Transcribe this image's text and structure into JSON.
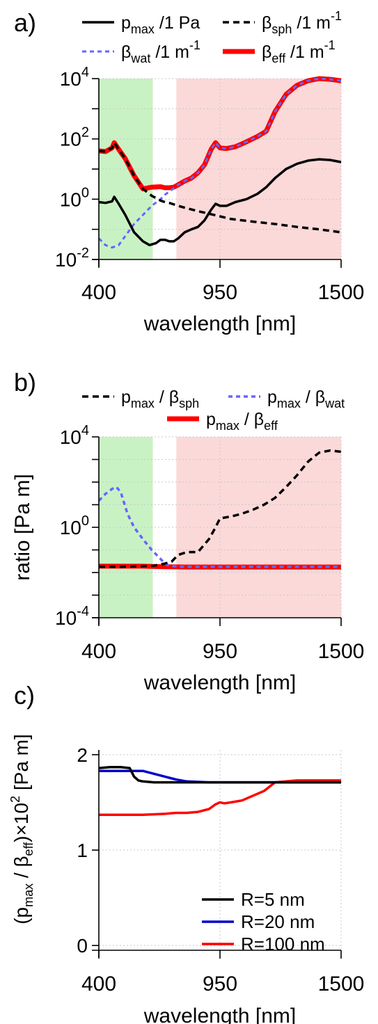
{
  "chart_data": [
    {
      "panel_label": "a)",
      "type": "line",
      "xlabel": "wavelength [nm]",
      "ylabel": "",
      "xlim": [
        400,
        1500
      ],
      "ylim": [
        0.01,
        10000
      ],
      "yscale": "log",
      "xticks": [
        400,
        950,
        1500
      ],
      "xtick_labels": [
        "400",
        "950",
        "1500"
      ],
      "ytick_exponents": [
        "-2",
        "0",
        "2",
        "4"
      ],
      "grid": true,
      "bands": [
        {
          "from": 400,
          "to": 645,
          "color": "#c9f2c4"
        },
        {
          "from": 752,
          "to": 1500,
          "color": "#fbd9d9"
        }
      ],
      "legend": [
        {
          "key": "pmax_a",
          "base": "p",
          "sub": "max",
          "rest": " /1 Pa",
          "sup": ""
        },
        {
          "key": "bsph_a",
          "base": "β",
          "sub": "sph",
          "rest": " /1 m",
          "sup": "-1"
        },
        {
          "key": "bwat_a",
          "base": "β",
          "sub": "wat",
          "rest": " /1 m",
          "sup": "-1"
        },
        {
          "key": "beff_a",
          "base": "β",
          "sub": "eff",
          "rest": " /1 m",
          "sup": "-1"
        }
      ],
      "series": [
        {
          "key": "beff_a",
          "color": "#ff0000",
          "width": 7,
          "dash": "",
          "x": [
            400,
            430,
            460,
            470,
            490,
            520,
            560,
            600,
            640,
            680,
            700,
            720,
            740,
            760,
            790,
            820,
            850,
            880,
            910,
            930,
            950,
            980,
            1020,
            1070,
            1120,
            1160,
            1200,
            1250,
            1300,
            1350,
            1400,
            1450,
            1500
          ],
          "y": [
            40,
            38,
            50,
            75,
            45,
            22,
            6,
            2.2,
            2.5,
            2.6,
            2.4,
            2.4,
            2.5,
            3,
            4,
            5,
            7.5,
            14,
            45,
            75,
            50,
            48,
            55,
            80,
            120,
            180,
            800,
            3000,
            6000,
            8500,
            10000,
            9500,
            8500
          ]
        },
        {
          "key": "bwat_a",
          "color": "#6666ff",
          "width": 3,
          "dash": "6 5",
          "x": [
            400,
            430,
            460,
            490,
            520,
            560,
            600,
            640,
            680,
            700,
            720,
            740,
            760,
            790,
            820,
            850,
            880,
            910,
            930,
            950,
            980,
            1020,
            1070,
            1120,
            1160,
            1200,
            1250,
            1300,
            1350,
            1400,
            1450,
            1500
          ],
          "y": [
            0.05,
            0.03,
            0.025,
            0.03,
            0.06,
            0.15,
            0.3,
            0.6,
            1.0,
            1.4,
            1.8,
            2.3,
            3,
            4,
            5,
            7.5,
            14,
            45,
            75,
            50,
            48,
            55,
            80,
            120,
            180,
            800,
            3000,
            6000,
            8500,
            10000,
            9500,
            8500
          ]
        },
        {
          "key": "bsph_a",
          "color": "#000000",
          "width": 3.5,
          "dash": "9 6",
          "x": [
            400,
            430,
            460,
            470,
            490,
            520,
            560,
            600,
            640,
            680,
            700,
            720,
            760,
            800,
            850,
            900,
            950,
            1000,
            1100,
            1200,
            1300,
            1400,
            1500
          ],
          "y": [
            40,
            38,
            50,
            75,
            45,
            22,
            6,
            2.2,
            1.3,
            0.9,
            0.8,
            0.75,
            0.6,
            0.5,
            0.4,
            0.33,
            0.27,
            0.22,
            0.18,
            0.15,
            0.12,
            0.1,
            0.08
          ]
        },
        {
          "key": "pmax_a",
          "color": "#000000",
          "width": 3.5,
          "dash": "",
          "x": [
            400,
            430,
            460,
            470,
            490,
            520,
            560,
            600,
            630,
            660,
            680,
            700,
            720,
            740,
            760,
            790,
            820,
            850,
            880,
            910,
            930,
            950,
            980,
            1020,
            1070,
            1120,
            1160,
            1200,
            1250,
            1300,
            1350,
            1400,
            1450,
            1500
          ],
          "y": [
            0.8,
            0.75,
            0.85,
            1.2,
            0.7,
            0.3,
            0.08,
            0.04,
            0.03,
            0.035,
            0.045,
            0.045,
            0.04,
            0.04,
            0.05,
            0.08,
            0.1,
            0.12,
            0.2,
            0.45,
            0.7,
            0.6,
            0.6,
            0.8,
            1.0,
            1.5,
            2.5,
            5,
            10,
            15,
            19,
            21,
            20,
            17
          ]
        }
      ]
    },
    {
      "panel_label": "b)",
      "type": "line",
      "xlabel": "wavelength [nm]",
      "ylabel": "ratio [Pa m]",
      "xlim": [
        400,
        1500
      ],
      "ylim": [
        0.0001,
        10000
      ],
      "yscale": "log",
      "xticks": [
        400,
        950,
        1500
      ],
      "xtick_labels": [
        "400",
        "950",
        "1500"
      ],
      "ytick_exponents": [
        "-4",
        "0",
        "4"
      ],
      "grid": true,
      "bands": [
        {
          "from": 400,
          "to": 645,
          "color": "#c9f2c4"
        },
        {
          "from": 752,
          "to": 1500,
          "color": "#fbd9d9"
        }
      ],
      "legend": [
        {
          "key": "psph_b",
          "base": "p",
          "sub": "max",
          "rest": " / ",
          "base2": "β",
          "sub2": "sph"
        },
        {
          "key": "pwat_b",
          "base": "p",
          "sub": "max",
          "rest": " / ",
          "base2": "β",
          "sub2": "wat"
        },
        {
          "key": "peff_b",
          "base": "p",
          "sub": "max",
          "rest": " / ",
          "base2": "β",
          "sub2": "eff"
        }
      ],
      "series": [
        {
          "key": "peff_b",
          "color": "#ff0000",
          "width": 7,
          "dash": "",
          "x": [
            400,
            500,
            600,
            700,
            800,
            900,
            1000,
            1100,
            1200,
            1300,
            1400,
            1500
          ],
          "y": [
            0.019,
            0.019,
            0.019,
            0.018,
            0.0175,
            0.0175,
            0.0175,
            0.0175,
            0.0175,
            0.0175,
            0.0175,
            0.0175
          ]
        },
        {
          "key": "pwat_b",
          "color": "#6666ff",
          "width": 3.5,
          "dash": "6 5",
          "x": [
            400,
            430,
            460,
            480,
            500,
            530,
            560,
            600,
            640,
            680,
            700,
            720,
            740,
            760,
            800,
            900,
            1000,
            1100,
            1200,
            1300,
            1400,
            1500
          ],
          "y": [
            15,
            30,
            50,
            60,
            35,
            4,
            1,
            0.3,
            0.1,
            0.04,
            0.025,
            0.02,
            0.019,
            0.0185,
            0.018,
            0.018,
            0.018,
            0.018,
            0.018,
            0.018,
            0.018,
            0.018
          ]
        },
        {
          "key": "psph_b",
          "color": "#000000",
          "width": 3.5,
          "dash": "9 6",
          "x": [
            400,
            500,
            600,
            650,
            700,
            730,
            760,
            800,
            850,
            900,
            930,
            950,
            1000,
            1050,
            1100,
            1150,
            1200,
            1250,
            1300,
            1350,
            1400,
            1450,
            1500
          ],
          "y": [
            0.018,
            0.018,
            0.019,
            0.02,
            0.025,
            0.03,
            0.06,
            0.08,
            0.08,
            0.3,
            1,
            2.5,
            3,
            4,
            6,
            10,
            20,
            60,
            200,
            800,
            2000,
            2500,
            2200
          ]
        }
      ]
    },
    {
      "panel_label": "c)",
      "type": "line",
      "xlabel": "wavelength [nm]",
      "ylabel_parts": {
        "p1": "(p",
        "sub1": "max",
        "p2": " / β",
        "sub2": "eff",
        "p3": ")×10",
        "sup": "2",
        "p4": " [Pa m]"
      },
      "xlim": [
        400,
        1500
      ],
      "ylim": [
        -0.05,
        2.05
      ],
      "yscale": "linear",
      "xticks": [
        400,
        950,
        1500
      ],
      "xtick_labels": [
        "400",
        "950",
        "1500"
      ],
      "yticks": [
        0,
        1,
        2
      ],
      "ytick_labels": [
        "0",
        "1",
        "2"
      ],
      "grid": true,
      "legend": [
        {
          "key": "r5",
          "label": "R=5 nm"
        },
        {
          "key": "r20",
          "label": "R=20 nm"
        },
        {
          "key": "r100",
          "label": "R=100 nm"
        }
      ],
      "series": [
        {
          "key": "r100",
          "color": "#ff0000",
          "width": 3.5,
          "dash": "",
          "x": [
            400,
            500,
            600,
            700,
            750,
            800,
            850,
            900,
            930,
            950,
            970,
            1000,
            1050,
            1100,
            1150,
            1200,
            1250,
            1300,
            1400,
            1500
          ],
          "y": [
            1.37,
            1.37,
            1.37,
            1.38,
            1.39,
            1.39,
            1.4,
            1.43,
            1.48,
            1.5,
            1.49,
            1.5,
            1.52,
            1.57,
            1.62,
            1.71,
            1.72,
            1.73,
            1.73,
            1.73
          ]
        },
        {
          "key": "r20",
          "color": "#0000cc",
          "width": 3.5,
          "dash": "",
          "x": [
            400,
            500,
            600,
            650,
            700,
            750,
            800,
            900,
            1000,
            1100,
            1200,
            1300,
            1400,
            1500
          ],
          "y": [
            1.83,
            1.83,
            1.83,
            1.8,
            1.77,
            1.74,
            1.72,
            1.71,
            1.71,
            1.71,
            1.71,
            1.71,
            1.71,
            1.71
          ]
        },
        {
          "key": "r5",
          "color": "#000000",
          "width": 3.5,
          "dash": "",
          "x": [
            400,
            450,
            500,
            540,
            560,
            580,
            600,
            650,
            700,
            800,
            900,
            1000,
            1100,
            1200,
            1300,
            1400,
            1500
          ],
          "y": [
            1.86,
            1.87,
            1.87,
            1.86,
            1.77,
            1.73,
            1.72,
            1.71,
            1.71,
            1.71,
            1.71,
            1.71,
            1.71,
            1.71,
            1.71,
            1.71,
            1.71
          ]
        }
      ]
    }
  ]
}
